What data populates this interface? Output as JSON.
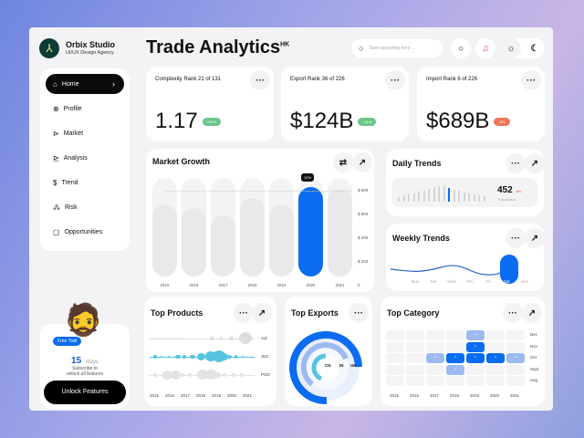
{
  "brand": {
    "name": "Orbix Studio",
    "tagline": "UI/UX Design Agency"
  },
  "header": {
    "title": "Trade Analytics",
    "superscript": "HK",
    "search_placeholder": "Start searching here ..."
  },
  "sidebar": {
    "items": [
      {
        "label": "Home",
        "icon": "home-icon",
        "active": true
      },
      {
        "label": "Profile",
        "icon": "profile-icon"
      },
      {
        "label": "Market",
        "icon": "market-icon"
      },
      {
        "label": "Analysis",
        "icon": "analysis-icon"
      },
      {
        "label": "Trend",
        "icon": "trend-icon"
      },
      {
        "label": "Risk",
        "icon": "risk-icon"
      },
      {
        "label": "Opportunities",
        "icon": "opportunities-icon"
      }
    ]
  },
  "promo": {
    "badge": "Free Trail",
    "days": "15",
    "days_unit": "/days",
    "text1": "Subscribe to",
    "text2": "unlock all features",
    "button": "Unlock Features"
  },
  "stats": [
    {
      "label": "Complexity Rank 21 of 131",
      "value": "1.17",
      "change": "+20%",
      "color": "#6cc58a"
    },
    {
      "label": "Export Rank 36 of 226",
      "value": "$124B",
      "change": "+11%",
      "color": "#6cc58a"
    },
    {
      "label": "Import Rank 6 of 226",
      "value": "$689B",
      "change": "-5%",
      "color": "#ee7658"
    }
  ],
  "market_growth": {
    "title": "Market Growth",
    "tooltip": "12%"
  },
  "daily": {
    "title": "Daily Trends",
    "value": "452",
    "change": "-8%",
    "caption": "Transaction"
  },
  "weekly": {
    "title": "Weekly Trends",
    "days": [
      "Mon",
      "Tue",
      "Wed",
      "Thu",
      "Fri",
      "Sat",
      "Sun"
    ],
    "selected": "Sat"
  },
  "top_products": {
    "title": "Top Products",
    "rows": [
      "AIZ",
      "JEZ",
      "POD"
    ],
    "years": [
      "2015",
      "2016",
      "2017",
      "2018",
      "2019",
      "2020",
      "2021"
    ]
  },
  "top_exports": {
    "title": "Top Exports",
    "labels": [
      "CN",
      "IN",
      "UK"
    ]
  },
  "top_category": {
    "title": "Top Category",
    "months": [
      "Dec",
      "Nov",
      "Oct",
      "Sept",
      "Aug"
    ],
    "years": [
      "2015",
      "2016",
      "2017",
      "2018",
      "2019",
      "2020",
      "2021"
    ]
  },
  "chart_data": {
    "type": "bar",
    "categories": [
      "2015",
      "2016",
      "2017",
      "2018",
      "2019",
      "2020",
      "2021"
    ],
    "values": [
      640,
      610,
      540,
      700,
      640,
      790,
      780
    ],
    "yticks": [
      "$ 800",
      "$ 600",
      "$ 400",
      "$ 200",
      "0"
    ],
    "ylim": [
      0,
      850
    ],
    "highlight": "2020",
    "colors": {
      "highlight": "#0a6cf0",
      "bar": "#e9e9eb"
    }
  }
}
